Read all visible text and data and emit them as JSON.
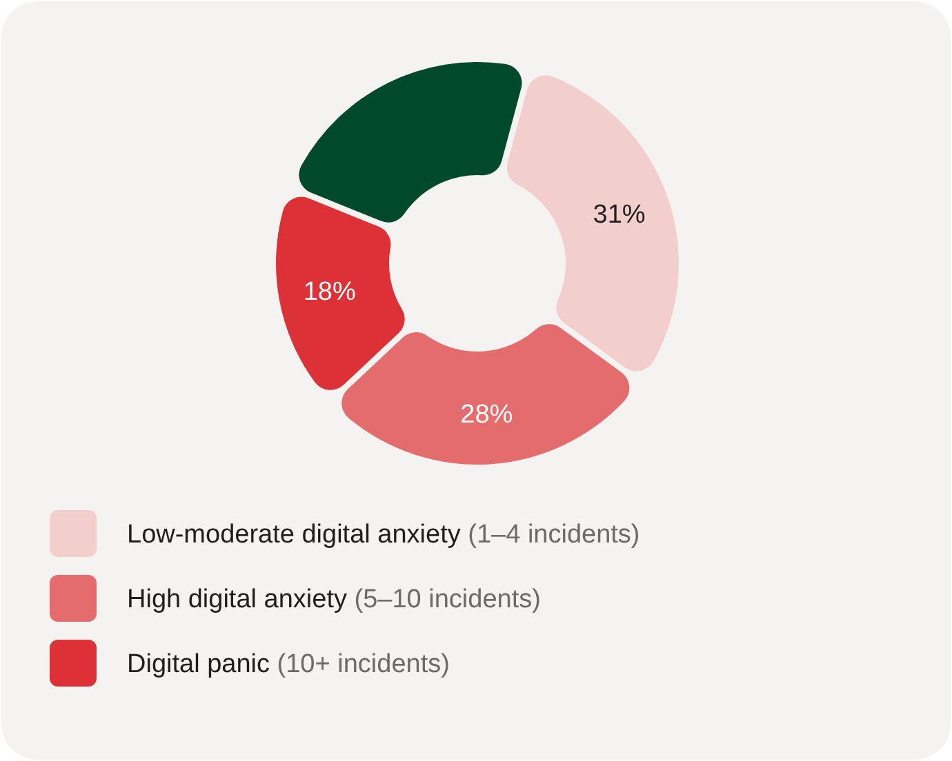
{
  "chart_data": {
    "type": "donut",
    "categories": [
      "Low-moderate digital anxiety (1–4 incidents)",
      "High digital anxiety (5–10 incidents)",
      "Digital panic (10+ incidents)",
      null
    ],
    "values": [
      31,
      28,
      18,
      23
    ],
    "colors": [
      "#f2cfcd",
      "#e46c6c",
      "#dc3237",
      "#00492a"
    ],
    "value_labels": [
      "31%",
      "28%",
      "18%",
      null
    ],
    "legend": "bottom"
  }
}
